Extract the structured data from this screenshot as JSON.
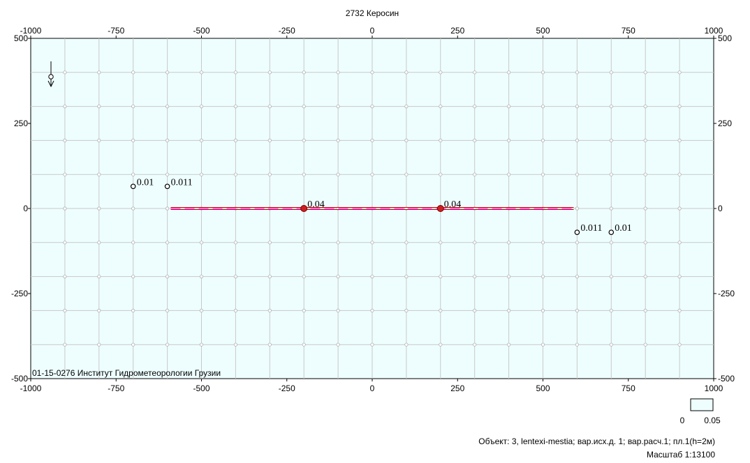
{
  "chart_data": {
    "type": "scatter",
    "title": "2732 Керосин",
    "xlim": [
      -1000,
      1000
    ],
    "ylim": [
      -500,
      500
    ],
    "x_ticks": [
      -1000,
      -750,
      -500,
      -250,
      0,
      250,
      500,
      750,
      1000
    ],
    "y_ticks": [
      500,
      250,
      0,
      -250,
      -500
    ],
    "x_tick_labels": [
      "-1000",
      "-750",
      "-500",
      "-250",
      "0",
      "250",
      "500",
      "750",
      "1000"
    ],
    "y_tick_labels": [
      "500",
      "250",
      "0",
      "-250",
      "-500"
    ],
    "grid": true,
    "grid_step": 100,
    "plot_background": "#eefefe",
    "source_segment": {
      "x": [
        -590,
        590
      ],
      "y": [
        0,
        0
      ],
      "color": "#cc0000",
      "dash_color": "#ff66ff"
    },
    "points": [
      {
        "x": -700,
        "y": 65,
        "label": "0.01",
        "color": "#ffffff",
        "filled": false
      },
      {
        "x": -600,
        "y": 65,
        "label": "0.011",
        "color": "#ffffff",
        "filled": false
      },
      {
        "x": -200,
        "y": 0,
        "label": "0.04",
        "color": "#cc2020",
        "filled": true
      },
      {
        "x": 200,
        "y": 0,
        "label": "0.04",
        "color": "#cc2020",
        "filled": true
      },
      {
        "x": 600,
        "y": -70,
        "label": "0.011",
        "color": "#ffffff",
        "filled": false
      },
      {
        "x": 700,
        "y": -70,
        "label": "0.01",
        "color": "#ffffff",
        "filled": false
      }
    ],
    "inner_label": "01-15-0276 Институт Гидрометеорологии Грузии",
    "legend": {
      "min": "0",
      "max": "0.05",
      "color": "#eefefe"
    }
  },
  "footer": {
    "object_line": "Объект: 3, lentexi-mestia; вар.исх.д. 1; вар.расч.1; пл.1(h=2м)",
    "scale_line": "Масштаб 1:13100"
  },
  "icons": {
    "north_arrow": "north-arrow-icon"
  }
}
